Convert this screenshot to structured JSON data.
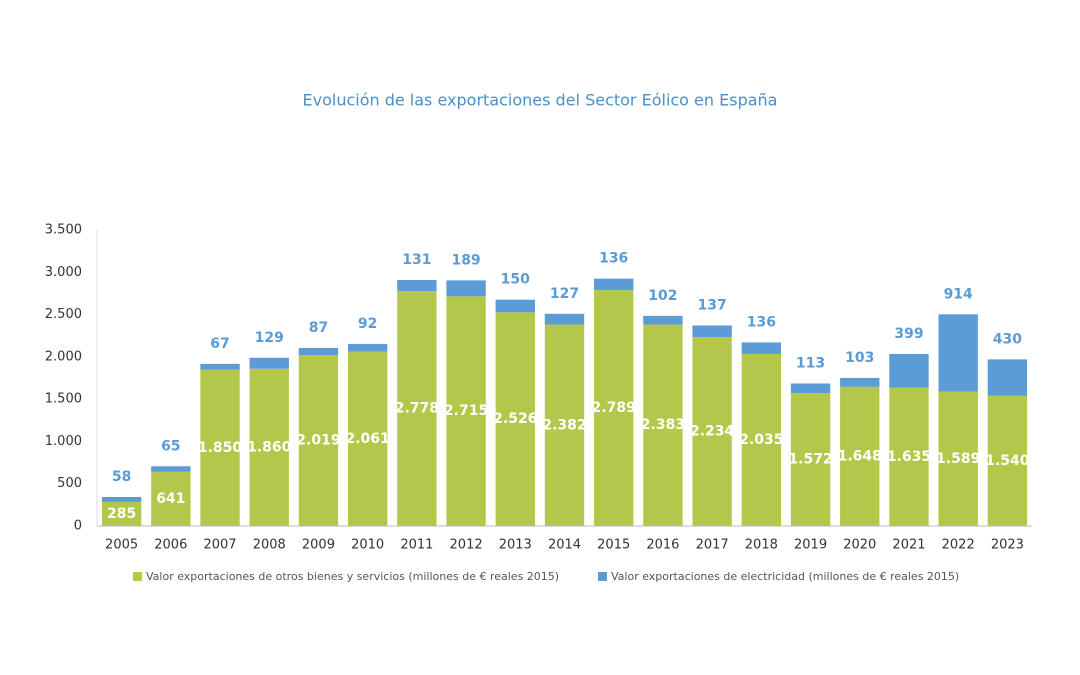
{
  "chart_data": {
    "type": "stacked_bar",
    "title": "Evolución de las exportaciones del Sector Eólico en España",
    "categories": [
      "2005",
      "2006",
      "2007",
      "2008",
      "2009",
      "2010",
      "2011",
      "2012",
      "2013",
      "2014",
      "2015",
      "2016",
      "2017",
      "2018",
      "2019",
      "2020",
      "2021",
      "2022",
      "2023"
    ],
    "series": [
      {
        "name": "Valor exportaciones de otros bienes y servicios (millones de € reales 2015)",
        "color": "#b3c84b",
        "values": [
          285,
          641,
          1850,
          1860,
          2019,
          2061,
          2778,
          2715,
          2526,
          2382,
          2789,
          2383,
          2234,
          2035,
          1572,
          1648,
          1635,
          1589,
          1540
        ],
        "value_labels": [
          "285",
          "641",
          "1.850",
          "1.860",
          "2.019",
          "2.061",
          "2.778",
          "2.715",
          "2.526",
          "2.382",
          "2.789",
          "2.383",
          "2.234",
          "2.035",
          "1.572",
          "1.648",
          "1.635",
          "1.589",
          "1.540"
        ]
      },
      {
        "name": "Valor exportaciones de electricidad (millones de € reales 2015)",
        "color": "#5b9bd6",
        "values": [
          58,
          65,
          67,
          129,
          87,
          92,
          131,
          189,
          150,
          127,
          136,
          102,
          137,
          136,
          113,
          103,
          399,
          914,
          430
        ]
      }
    ],
    "ylim": [
      0,
      3500
    ],
    "yticks": [
      0,
      500,
      {
        "value": 1000,
        "label": "1.000"
      },
      {
        "value": 1500,
        "label": "1.500"
      },
      {
        "value": 2000,
        "label": "2.000"
      },
      {
        "value": 2500,
        "label": "2.500"
      },
      {
        "value": 3000,
        "label": "3.000"
      },
      {
        "value": 3500,
        "label": "3.500"
      }
    ],
    "grid": false
  }
}
